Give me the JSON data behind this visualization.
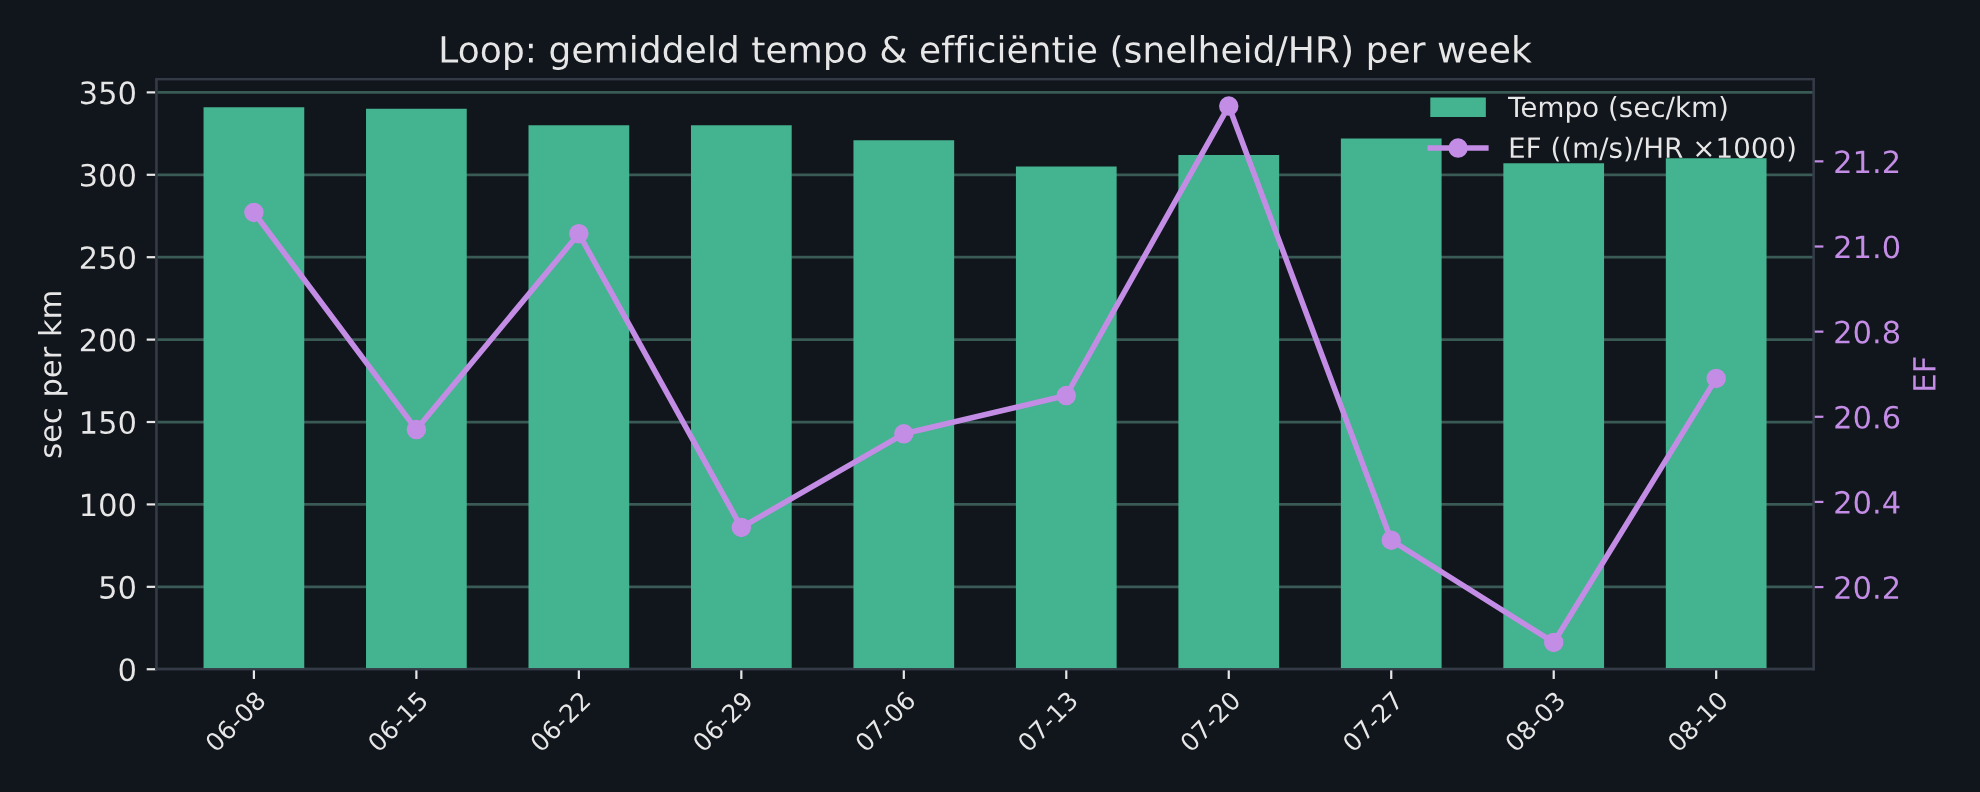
{
  "chart_data": {
    "type": "bar",
    "title": "Loop: gemiddeld tempo & efficiëntie (snelheid/HR) per week",
    "categories": [
      "06-08",
      "06-15",
      "06-22",
      "06-29",
      "07-06",
      "07-13",
      "07-20",
      "07-27",
      "08-03",
      "08-10"
    ],
    "series": [
      {
        "name": "Tempo (sec/km)",
        "color": "#44b38f",
        "values": [
          341,
          340,
          330,
          330,
          321,
          305,
          312,
          322,
          307,
          310
        ]
      },
      {
        "name": "EF ((m/s)/HR ×1000)",
        "type": "line",
        "axis": "y2",
        "color": "#c38de6",
        "marker": "circle",
        "values": [
          21.08,
          20.57,
          21.03,
          20.34,
          20.56,
          20.65,
          21.33,
          20.31,
          20.07,
          20.69
        ]
      }
    ],
    "ylabel": "sec per km",
    "y2label": "EF",
    "ylim": [
      0,
      358
    ],
    "yticks": [
      0,
      50,
      100,
      150,
      200,
      250,
      300,
      350
    ],
    "y2lim": [
      20.007,
      21.393
    ],
    "y2ticks": [
      {
        "value": 20.2,
        "label": "20.2"
      },
      {
        "value": 20.4,
        "label": "20.4"
      },
      {
        "value": 20.6,
        "label": "20.6"
      },
      {
        "value": 20.8,
        "label": "20.8"
      },
      {
        "value": 21.0,
        "label": "21.0"
      },
      {
        "value": 21.2,
        "label": "21.2"
      }
    ],
    "grid": "y",
    "legend": "top right"
  }
}
